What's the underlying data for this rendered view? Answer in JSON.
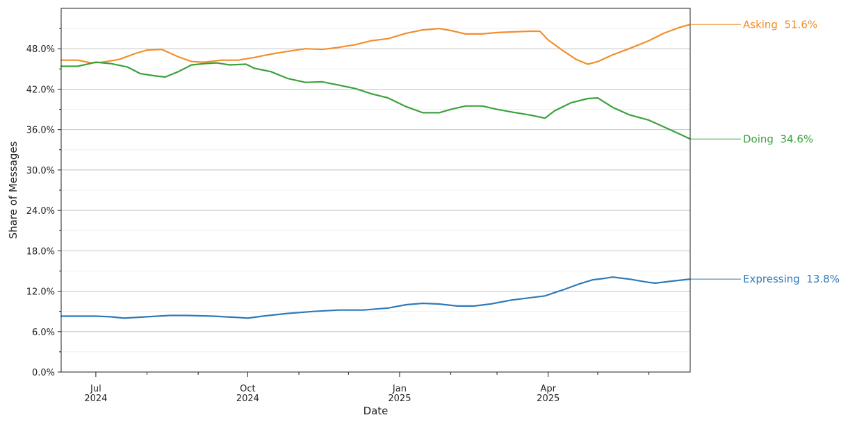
{
  "chart_data": {
    "type": "line",
    "title": "",
    "xlabel": "Date",
    "ylabel": "Share of Messages",
    "x_range": [
      "2024-06-10",
      "2025-06-26"
    ],
    "ylim": [
      0,
      54
    ],
    "grid": "horizontal",
    "y_ticks": [
      {
        "value": 0,
        "label": "0.0%"
      },
      {
        "value": 6,
        "label": "6.0%"
      },
      {
        "value": 12,
        "label": "12.0%"
      },
      {
        "value": 18,
        "label": "18.0%"
      },
      {
        "value": 24,
        "label": "24.0%"
      },
      {
        "value": 30,
        "label": "30.0%"
      },
      {
        "value": 36,
        "label": "36.0%"
      },
      {
        "value": 42,
        "label": "42.0%"
      },
      {
        "value": 48,
        "label": "48.0%"
      }
    ],
    "x_ticks": [
      {
        "date": "2024-07-01",
        "month": "Jul",
        "year": "2024"
      },
      {
        "date": "2024-10-01",
        "month": "Oct",
        "year": "2024"
      },
      {
        "date": "2025-01-01",
        "month": "Jan",
        "year": "2025"
      },
      {
        "date": "2025-04-01",
        "month": "Apr",
        "year": "2025"
      }
    ],
    "x_minor_ticks": [
      "2024-08-01",
      "2024-09-01",
      "2024-11-01",
      "2024-12-01",
      "2025-02-01",
      "2025-03-01",
      "2025-05-01",
      "2025-06-01"
    ],
    "series": [
      {
        "name": "Asking",
        "color": "#f28e2b",
        "end_label": "Asking  51.6%",
        "points": [
          [
            "2024-06-10",
            46.3
          ],
          [
            "2024-06-20",
            46.3
          ],
          [
            "2024-06-28",
            45.9
          ],
          [
            "2024-07-05",
            46.0
          ],
          [
            "2024-07-15",
            46.4
          ],
          [
            "2024-07-25",
            47.3
          ],
          [
            "2024-08-01",
            47.8
          ],
          [
            "2024-08-10",
            47.9
          ],
          [
            "2024-08-20",
            46.8
          ],
          [
            "2024-08-28",
            46.1
          ],
          [
            "2024-09-05",
            46.0
          ],
          [
            "2024-09-15",
            46.3
          ],
          [
            "2024-09-25",
            46.3
          ],
          [
            "2024-10-05",
            46.7
          ],
          [
            "2024-10-15",
            47.2
          ],
          [
            "2024-10-25",
            47.6
          ],
          [
            "2024-11-05",
            48.0
          ],
          [
            "2024-11-15",
            47.9
          ],
          [
            "2024-11-25",
            48.2
          ],
          [
            "2024-12-05",
            48.6
          ],
          [
            "2024-12-15",
            49.2
          ],
          [
            "2024-12-25",
            49.5
          ],
          [
            "2025-01-05",
            50.3
          ],
          [
            "2025-01-15",
            50.8
          ],
          [
            "2025-01-25",
            51.0
          ],
          [
            "2025-02-01",
            50.7
          ],
          [
            "2025-02-10",
            50.2
          ],
          [
            "2025-02-20",
            50.2
          ],
          [
            "2025-03-01",
            50.4
          ],
          [
            "2025-03-10",
            50.5
          ],
          [
            "2025-03-20",
            50.6
          ],
          [
            "2025-03-27",
            50.6
          ],
          [
            "2025-04-01",
            49.3
          ],
          [
            "2025-04-10",
            47.7
          ],
          [
            "2025-04-18",
            46.4
          ],
          [
            "2025-04-25",
            45.7
          ],
          [
            "2025-05-01",
            46.1
          ],
          [
            "2025-05-10",
            47.1
          ],
          [
            "2025-05-20",
            48.0
          ],
          [
            "2025-06-01",
            49.2
          ],
          [
            "2025-06-10",
            50.3
          ],
          [
            "2025-06-20",
            51.2
          ],
          [
            "2025-06-26",
            51.6
          ]
        ]
      },
      {
        "name": "Doing",
        "color": "#3ba13b",
        "end_label": "Doing  34.6%",
        "points": [
          [
            "2024-06-10",
            45.4
          ],
          [
            "2024-06-20",
            45.4
          ],
          [
            "2024-07-01",
            46.0
          ],
          [
            "2024-07-10",
            45.8
          ],
          [
            "2024-07-20",
            45.3
          ],
          [
            "2024-07-28",
            44.3
          ],
          [
            "2024-08-05",
            44.0
          ],
          [
            "2024-08-12",
            43.8
          ],
          [
            "2024-08-20",
            44.6
          ],
          [
            "2024-08-28",
            45.6
          ],
          [
            "2024-09-05",
            45.8
          ],
          [
            "2024-09-12",
            45.9
          ],
          [
            "2024-09-20",
            45.6
          ],
          [
            "2024-09-30",
            45.7
          ],
          [
            "2024-10-05",
            45.1
          ],
          [
            "2024-10-15",
            44.6
          ],
          [
            "2024-10-25",
            43.6
          ],
          [
            "2024-11-05",
            43.0
          ],
          [
            "2024-11-15",
            43.1
          ],
          [
            "2024-11-25",
            42.6
          ],
          [
            "2024-12-05",
            42.1
          ],
          [
            "2024-12-15",
            41.3
          ],
          [
            "2024-12-25",
            40.7
          ],
          [
            "2025-01-05",
            39.4
          ],
          [
            "2025-01-15",
            38.5
          ],
          [
            "2025-01-25",
            38.5
          ],
          [
            "2025-02-01",
            39.0
          ],
          [
            "2025-02-10",
            39.5
          ],
          [
            "2025-02-20",
            39.5
          ],
          [
            "2025-03-01",
            39.0
          ],
          [
            "2025-03-10",
            38.6
          ],
          [
            "2025-03-20",
            38.2
          ],
          [
            "2025-03-30",
            37.7
          ],
          [
            "2025-04-05",
            38.8
          ],
          [
            "2025-04-15",
            40.0
          ],
          [
            "2025-04-25",
            40.6
          ],
          [
            "2025-05-01",
            40.7
          ],
          [
            "2025-05-10",
            39.3
          ],
          [
            "2025-05-20",
            38.2
          ],
          [
            "2025-06-01",
            37.4
          ],
          [
            "2025-06-10",
            36.4
          ],
          [
            "2025-06-20",
            35.3
          ],
          [
            "2025-06-26",
            34.6
          ]
        ]
      },
      {
        "name": "Expressing",
        "color": "#2e7ab8",
        "end_label": "Expressing  13.8%",
        "points": [
          [
            "2024-06-10",
            8.3
          ],
          [
            "2024-06-20",
            8.3
          ],
          [
            "2024-07-01",
            8.3
          ],
          [
            "2024-07-10",
            8.2
          ],
          [
            "2024-07-18",
            8.0
          ],
          [
            "2024-08-01",
            8.2
          ],
          [
            "2024-08-15",
            8.4
          ],
          [
            "2024-08-25",
            8.4
          ],
          [
            "2024-09-10",
            8.3
          ],
          [
            "2024-09-25",
            8.1
          ],
          [
            "2024-10-01",
            8.0
          ],
          [
            "2024-10-10",
            8.3
          ],
          [
            "2024-10-25",
            8.7
          ],
          [
            "2024-11-10",
            9.0
          ],
          [
            "2024-11-25",
            9.2
          ],
          [
            "2024-12-10",
            9.2
          ],
          [
            "2024-12-25",
            9.5
          ],
          [
            "2025-01-05",
            10.0
          ],
          [
            "2025-01-15",
            10.2
          ],
          [
            "2025-01-25",
            10.1
          ],
          [
            "2025-02-05",
            9.8
          ],
          [
            "2025-02-15",
            9.8
          ],
          [
            "2025-02-25",
            10.1
          ],
          [
            "2025-03-10",
            10.7
          ],
          [
            "2025-03-20",
            11.0
          ],
          [
            "2025-03-30",
            11.3
          ],
          [
            "2025-04-10",
            12.2
          ],
          [
            "2025-04-20",
            13.1
          ],
          [
            "2025-04-28",
            13.7
          ],
          [
            "2025-05-05",
            13.9
          ],
          [
            "2025-05-10",
            14.1
          ],
          [
            "2025-05-20",
            13.8
          ],
          [
            "2025-06-01",
            13.3
          ],
          [
            "2025-06-05",
            13.2
          ],
          [
            "2025-06-15",
            13.5
          ],
          [
            "2025-06-26",
            13.8
          ]
        ]
      }
    ]
  }
}
